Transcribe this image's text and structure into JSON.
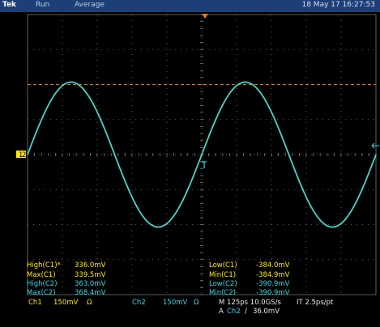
{
  "topbar": {
    "brand": "Tek",
    "mode": "Run",
    "acquisition": "Average",
    "datetime": "18 May 17 16:27:53"
  },
  "colors": {
    "ch1": "#ffea00",
    "ch2": "#35d8e0",
    "cursor": "#e07818",
    "grid": "#7a7a7a",
    "topbar": "#1c3f78"
  },
  "measurements": {
    "left": [
      {
        "label": "High(C1)*",
        "value": "336.0mV",
        "channel": "ch1"
      },
      {
        "label": "Max(C1)",
        "value": "339.5mV",
        "channel": "ch1"
      },
      {
        "label": "High(C2)",
        "value": "363.0mV",
        "channel": "ch2"
      },
      {
        "label": "Max(C2)",
        "value": "368.4mV",
        "channel": "ch2"
      }
    ],
    "right": [
      {
        "label": "Low(C1)",
        "value": "-384.0mV",
        "channel": "ch1"
      },
      {
        "label": "Min(C1)",
        "value": "-384.9mV",
        "channel": "ch1"
      },
      {
        "label": "Low(C2)",
        "value": "-390.9mV",
        "channel": "ch2"
      },
      {
        "label": "Min(C2)",
        "value": "-390.9mV",
        "channel": "ch2"
      }
    ]
  },
  "channels": {
    "ch1": {
      "name": "Ch1",
      "scale": "150mV",
      "coupling": "Ω"
    },
    "ch2": {
      "name": "Ch2",
      "scale": "150mV",
      "coupling": "Ω"
    }
  },
  "horizontal": {
    "timebase": "M 125ps 10.0GS/s",
    "interp": "IT 2.5ps/pt",
    "trigger_prefix": "A",
    "trigger_source": "Ch2",
    "trigger_slope": "/",
    "trigger_level": "36.0mV"
  },
  "markers": {
    "ch1_ground": "1",
    "ch2_ground": "2"
  },
  "icons": {
    "trigger_position": "trigger-position-marker-icon",
    "trigger_level": "trigger-level-arrow-icon"
  },
  "chart_data": {
    "type": "line",
    "x": [
      0,
      1,
      2,
      3,
      4,
      5,
      6,
      7,
      8,
      9,
      10
    ],
    "xlim": [
      0,
      10
    ],
    "ylim": [
      -4,
      4
    ],
    "grid": true,
    "cursor_level": 2.0,
    "series": [
      {
        "name": "Ch1",
        "color": "#ffea00",
        "amplitude": 2.07,
        "period_div": 5.0,
        "zero_cross_falling_div": 2.5
      },
      {
        "name": "Ch2",
        "color": "#35d8e0",
        "amplitude": 2.07,
        "period_div": 5.0,
        "zero_cross_rising_div": 0.0
      }
    ]
  }
}
